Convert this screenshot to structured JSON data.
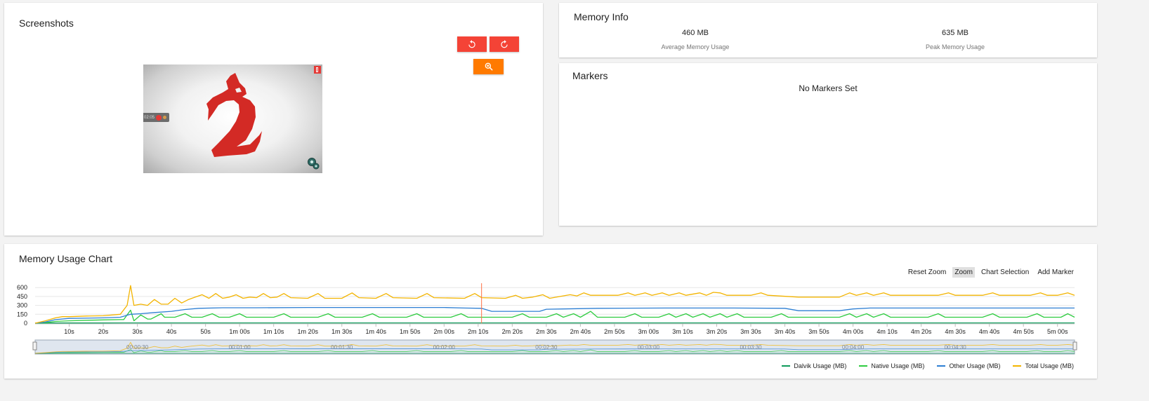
{
  "screenshots": {
    "title": "Screenshots",
    "rotate_left_icon": "rotate-counterclockwise-icon",
    "rotate_right_icon": "rotate-clockwise-icon",
    "zoom_icon": "zoom-in-icon",
    "overlay_time": "02:05"
  },
  "memory_info": {
    "title": "Memory Info",
    "average_value": "460 MB",
    "average_label": "Average Memory Usage",
    "peak_value": "635 MB",
    "peak_label": "Peak Memory Usage"
  },
  "markers": {
    "title": "Markers",
    "empty_text": "No Markers Set"
  },
  "chart_card": {
    "title": "Memory Usage Chart",
    "tools": [
      "Reset Zoom",
      "Zoom",
      "Chart Selection",
      "Add Marker"
    ],
    "active_tool": "Zoom"
  },
  "colors": {
    "dalvik": "#0e9a5a",
    "native": "#2ecc40",
    "other": "#2d7fd3",
    "total": "#f3b400",
    "marker": "#ff7043",
    "red_button": "#f44336",
    "orange_button": "#ff7a00"
  },
  "chart_data": {
    "type": "line",
    "x_unit": "seconds",
    "x_range": [
      0,
      305
    ],
    "ylim": [
      0,
      650
    ],
    "y_ticks": [
      0,
      150,
      300,
      450,
      600
    ],
    "x_ticks": [
      {
        "t": 10,
        "label": "10s"
      },
      {
        "t": 20,
        "label": "20s"
      },
      {
        "t": 30,
        "label": "30s"
      },
      {
        "t": 40,
        "label": "40s"
      },
      {
        "t": 50,
        "label": "50s"
      },
      {
        "t": 60,
        "label": "1m 00s"
      },
      {
        "t": 70,
        "label": "1m 10s"
      },
      {
        "t": 80,
        "label": "1m 20s"
      },
      {
        "t": 90,
        "label": "1m 30s"
      },
      {
        "t": 100,
        "label": "1m 40s"
      },
      {
        "t": 110,
        "label": "1m 50s"
      },
      {
        "t": 120,
        "label": "2m 00s"
      },
      {
        "t": 130,
        "label": "2m 10s"
      },
      {
        "t": 140,
        "label": "2m 20s"
      },
      {
        "t": 150,
        "label": "2m 30s"
      },
      {
        "t": 160,
        "label": "2m 40s"
      },
      {
        "t": 170,
        "label": "2m 50s"
      },
      {
        "t": 180,
        "label": "3m 00s"
      },
      {
        "t": 190,
        "label": "3m 10s"
      },
      {
        "t": 200,
        "label": "3m 20s"
      },
      {
        "t": 210,
        "label": "3m 30s"
      },
      {
        "t": 220,
        "label": "3m 40s"
      },
      {
        "t": 230,
        "label": "3m 50s"
      },
      {
        "t": 240,
        "label": "4m 00s"
      },
      {
        "t": 250,
        "label": "4m 10s"
      },
      {
        "t": 260,
        "label": "4m 20s"
      },
      {
        "t": 270,
        "label": "4m 30s"
      },
      {
        "t": 280,
        "label": "4m 40s"
      },
      {
        "t": 290,
        "label": "4m 50s"
      },
      {
        "t": 300,
        "label": "5m 00s"
      }
    ],
    "navigator_labels": [
      {
        "t": 30,
        "label": "00:00:30"
      },
      {
        "t": 60,
        "label": "00:01:00"
      },
      {
        "t": 90,
        "label": "00:01:30"
      },
      {
        "t": 120,
        "label": "00:02:00"
      },
      {
        "t": 150,
        "label": "00:02:30"
      },
      {
        "t": 180,
        "label": "00:03:00"
      },
      {
        "t": 210,
        "label": "00:03:30"
      },
      {
        "t": 240,
        "label": "00:04:00"
      },
      {
        "t": 270,
        "label": "00:04:30"
      }
    ],
    "marker_time": 131,
    "legend_position": "bottom-right",
    "series": [
      {
        "name": "Dalvik Usage (MB)",
        "key": "dalvik",
        "points": [
          [
            0,
            0
          ],
          [
            4,
            2
          ],
          [
            8,
            3
          ],
          [
            12,
            4
          ],
          [
            20,
            4
          ],
          [
            26,
            5
          ],
          [
            30,
            5
          ],
          [
            60,
            5
          ],
          [
            120,
            5
          ],
          [
            180,
            5
          ],
          [
            240,
            5
          ],
          [
            305,
            5
          ]
        ]
      },
      {
        "name": "Native Usage (MB)",
        "key": "native",
        "points": [
          [
            0,
            0
          ],
          [
            3,
            10
          ],
          [
            6,
            30
          ],
          [
            10,
            40
          ],
          [
            20,
            55
          ],
          [
            25,
            60
          ],
          [
            26,
            60
          ],
          [
            28,
            220
          ],
          [
            29,
            40
          ],
          [
            31,
            140
          ],
          [
            33,
            70
          ],
          [
            34,
            70
          ],
          [
            37,
            160
          ],
          [
            38,
            100
          ],
          [
            41,
            100
          ],
          [
            44,
            160
          ],
          [
            46,
            100
          ],
          [
            49,
            100
          ],
          [
            52,
            160
          ],
          [
            54,
            100
          ],
          [
            57,
            100
          ],
          [
            60,
            160
          ],
          [
            62,
            100
          ],
          [
            70,
            100
          ],
          [
            73,
            160
          ],
          [
            75,
            100
          ],
          [
            83,
            100
          ],
          [
            86,
            160
          ],
          [
            88,
            100
          ],
          [
            96,
            100
          ],
          [
            99,
            160
          ],
          [
            101,
            100
          ],
          [
            109,
            100
          ],
          [
            112,
            160
          ],
          [
            114,
            100
          ],
          [
            122,
            100
          ],
          [
            125,
            160
          ],
          [
            127,
            100
          ],
          [
            140,
            100
          ],
          [
            143,
            160
          ],
          [
            145,
            100
          ],
          [
            150,
            100
          ],
          [
            153,
            160
          ],
          [
            155,
            100
          ],
          [
            158,
            160
          ],
          [
            160,
            100
          ],
          [
            163,
            200
          ],
          [
            165,
            100
          ],
          [
            173,
            100
          ],
          [
            176,
            160
          ],
          [
            178,
            100
          ],
          [
            183,
            100
          ],
          [
            186,
            160
          ],
          [
            188,
            100
          ],
          [
            191,
            160
          ],
          [
            193,
            100
          ],
          [
            196,
            160
          ],
          [
            198,
            100
          ],
          [
            201,
            160
          ],
          [
            203,
            100
          ],
          [
            206,
            160
          ],
          [
            208,
            100
          ],
          [
            216,
            100
          ],
          [
            219,
            160
          ],
          [
            221,
            100
          ],
          [
            236,
            100
          ],
          [
            239,
            160
          ],
          [
            241,
            100
          ],
          [
            244,
            160
          ],
          [
            246,
            100
          ],
          [
            249,
            160
          ],
          [
            251,
            100
          ],
          [
            262,
            100
          ],
          [
            265,
            160
          ],
          [
            267,
            100
          ],
          [
            278,
            100
          ],
          [
            281,
            160
          ],
          [
            283,
            100
          ],
          [
            291,
            100
          ],
          [
            294,
            160
          ],
          [
            296,
            100
          ],
          [
            301,
            100
          ],
          [
            303,
            160
          ],
          [
            305,
            100
          ]
        ]
      },
      {
        "name": "Other Usage (MB)",
        "key": "other",
        "points": [
          [
            0,
            0
          ],
          [
            3,
            20
          ],
          [
            6,
            60
          ],
          [
            10,
            80
          ],
          [
            20,
            90
          ],
          [
            25,
            100
          ],
          [
            28,
            150
          ],
          [
            31,
            160
          ],
          [
            35,
            180
          ],
          [
            40,
            200
          ],
          [
            44,
            230
          ],
          [
            48,
            250
          ],
          [
            55,
            260
          ],
          [
            65,
            260
          ],
          [
            80,
            265
          ],
          [
            100,
            265
          ],
          [
            120,
            265
          ],
          [
            126,
            255
          ],
          [
            131,
            250
          ],
          [
            134,
            200
          ],
          [
            148,
            200
          ],
          [
            150,
            235
          ],
          [
            155,
            240
          ],
          [
            165,
            250
          ],
          [
            185,
            255
          ],
          [
            205,
            255
          ],
          [
            220,
            250
          ],
          [
            224,
            210
          ],
          [
            236,
            210
          ],
          [
            240,
            240
          ],
          [
            245,
            255
          ],
          [
            270,
            255
          ],
          [
            305,
            255
          ]
        ]
      },
      {
        "name": "Total Usage (MB)",
        "key": "total",
        "points": [
          [
            0,
            0
          ],
          [
            3,
            40
          ],
          [
            6,
            90
          ],
          [
            8,
            110
          ],
          [
            10,
            110
          ],
          [
            15,
            120
          ],
          [
            20,
            125
          ],
          [
            25,
            150
          ],
          [
            27,
            300
          ],
          [
            28,
            635
          ],
          [
            29,
            300
          ],
          [
            31,
            320
          ],
          [
            33,
            300
          ],
          [
            35,
            400
          ],
          [
            37,
            320
          ],
          [
            39,
            320
          ],
          [
            41,
            420
          ],
          [
            43,
            340
          ],
          [
            45,
            400
          ],
          [
            47,
            440
          ],
          [
            49,
            480
          ],
          [
            51,
            420
          ],
          [
            53,
            500
          ],
          [
            55,
            420
          ],
          [
            57,
            440
          ],
          [
            59,
            480
          ],
          [
            61,
            420
          ],
          [
            63,
            440
          ],
          [
            65,
            430
          ],
          [
            67,
            500
          ],
          [
            69,
            430
          ],
          [
            71,
            440
          ],
          [
            73,
            500
          ],
          [
            75,
            430
          ],
          [
            80,
            420
          ],
          [
            83,
            500
          ],
          [
            85,
            420
          ],
          [
            90,
            420
          ],
          [
            93,
            510
          ],
          [
            95,
            430
          ],
          [
            100,
            420
          ],
          [
            103,
            500
          ],
          [
            105,
            430
          ],
          [
            112,
            420
          ],
          [
            115,
            500
          ],
          [
            117,
            430
          ],
          [
            126,
            420
          ],
          [
            129,
            500
          ],
          [
            131,
            430
          ],
          [
            138,
            420
          ],
          [
            141,
            470
          ],
          [
            143,
            420
          ],
          [
            146,
            440
          ],
          [
            149,
            480
          ],
          [
            151,
            420
          ],
          [
            154,
            450
          ],
          [
            157,
            480
          ],
          [
            159,
            460
          ],
          [
            161,
            510
          ],
          [
            163,
            470
          ],
          [
            171,
            470
          ],
          [
            174,
            510
          ],
          [
            176,
            470
          ],
          [
            179,
            510
          ],
          [
            181,
            470
          ],
          [
            184,
            510
          ],
          [
            186,
            470
          ],
          [
            189,
            510
          ],
          [
            191,
            470
          ],
          [
            195,
            510
          ],
          [
            197,
            470
          ],
          [
            199,
            520
          ],
          [
            201,
            510
          ],
          [
            203,
            470
          ],
          [
            210,
            470
          ],
          [
            213,
            510
          ],
          [
            215,
            470
          ],
          [
            224,
            440
          ],
          [
            236,
            440
          ],
          [
            239,
            510
          ],
          [
            241,
            470
          ],
          [
            244,
            510
          ],
          [
            246,
            470
          ],
          [
            249,
            510
          ],
          [
            251,
            470
          ],
          [
            265,
            470
          ],
          [
            268,
            510
          ],
          [
            270,
            470
          ],
          [
            278,
            470
          ],
          [
            281,
            510
          ],
          [
            283,
            470
          ],
          [
            292,
            470
          ],
          [
            295,
            510
          ],
          [
            297,
            470
          ],
          [
            300,
            470
          ],
          [
            303,
            510
          ],
          [
            305,
            470
          ]
        ]
      }
    ]
  }
}
